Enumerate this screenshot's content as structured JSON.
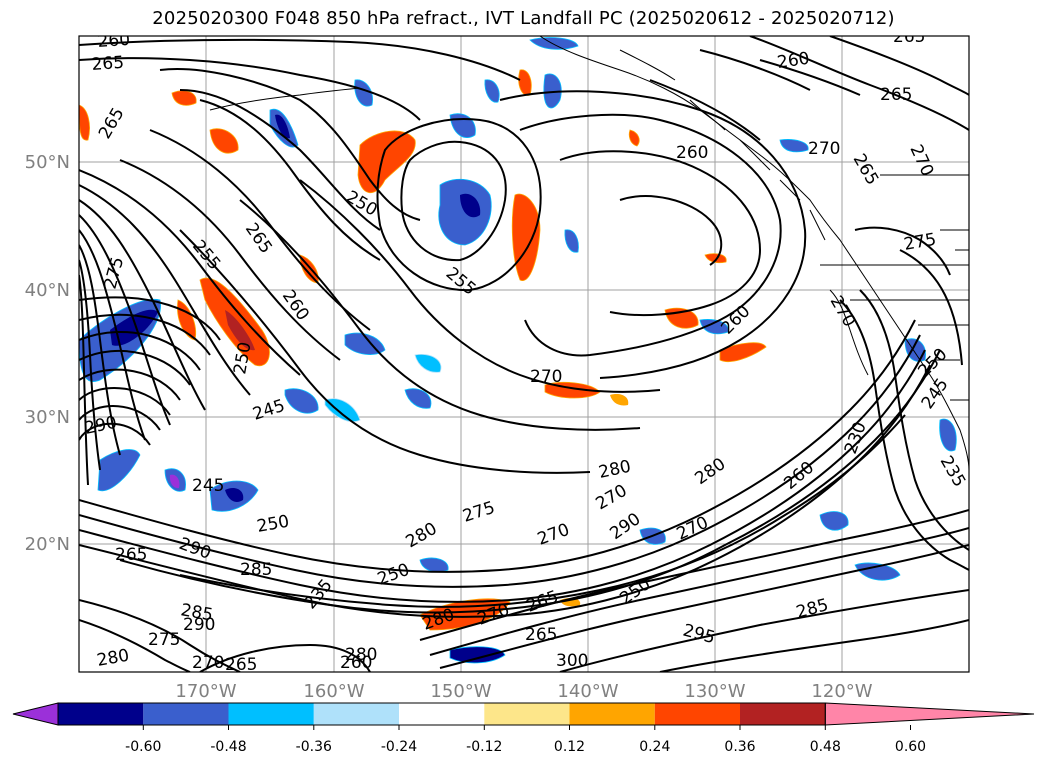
{
  "title": "2025020300 F048 850 hPa refract., IVT Landfall PC (2025020612 - 2025020712)",
  "lat_labels": [
    "50°N",
    "40°N",
    "30°N",
    "20°N"
  ],
  "lon_labels": [
    "170°W",
    "160°W",
    "150°W",
    "140°W",
    "130°W",
    "120°W"
  ],
  "colorbar": {
    "colors": [
      "#9b30d9",
      "#00008b",
      "#3a5fcd",
      "#00bfff",
      "#afe1fa",
      "#ffffff",
      "#fde68a",
      "#ffa500",
      "#ff4500",
      "#b22222",
      "#ff85a8"
    ],
    "ticks": [
      "-0.60",
      "-0.48",
      "-0.36",
      "-0.24",
      "-0.12",
      "0.12",
      "0.24",
      "0.36",
      "0.48",
      "0.60"
    ]
  },
  "contour_labels": [
    "260",
    "265",
    "260",
    "265",
    "270",
    "265",
    "270",
    "265",
    "275",
    "260",
    "265",
    "250",
    "255",
    "260",
    "255",
    "265",
    "275",
    "270",
    "250",
    "260",
    "270",
    "245",
    "280",
    "245",
    "250",
    "290",
    "270",
    "280",
    "275",
    "280",
    "270",
    "290",
    "290",
    "270",
    "265",
    "285",
    "250",
    "235",
    "285",
    "290",
    "275",
    "295",
    "280",
    "270",
    "265",
    "300",
    "260",
    "280",
    "250",
    "265",
    "230",
    "245",
    "235",
    "260",
    "250",
    "285",
    "280",
    "270",
    "265"
  ]
}
